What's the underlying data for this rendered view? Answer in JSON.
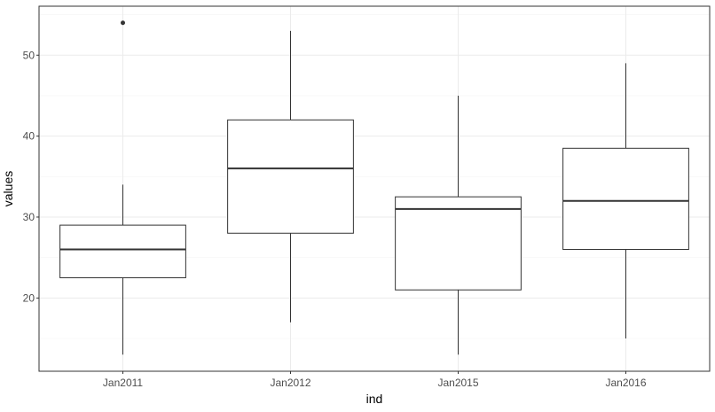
{
  "chart_data": {
    "type": "boxplot",
    "xlabel": "ind",
    "ylabel": "values",
    "categories": [
      "Jan2011",
      "Jan2012",
      "Jan2015",
      "Jan2016"
    ],
    "boxes": [
      {
        "category": "Jan2011",
        "whisker_low": 13,
        "q1": 22.5,
        "median": 26,
        "q3": 29,
        "whisker_high": 34,
        "outliers": [
          54
        ]
      },
      {
        "category": "Jan2012",
        "whisker_low": 17,
        "q1": 28,
        "median": 36,
        "q3": 42,
        "whisker_high": 53,
        "outliers": []
      },
      {
        "category": "Jan2015",
        "whisker_low": 13,
        "q1": 21,
        "median": 31,
        "q3": 32.5,
        "whisker_high": 45,
        "outliers": []
      },
      {
        "category": "Jan2016",
        "whisker_low": 15,
        "q1": 26,
        "median": 32,
        "q3": 38.5,
        "whisker_high": 49,
        "outliers": []
      }
    ],
    "ylim": [
      10.95,
      56.05
    ],
    "yticks": [
      20,
      30,
      40,
      50
    ],
    "yticks_minor": [
      15,
      25,
      35,
      45,
      55
    ],
    "grid": true,
    "legend": "none",
    "colors": {
      "panel_border": "#333333",
      "grid_major": "#ebebeb",
      "grid_minor": "#f5f5f5",
      "box_fill": "#ffffff",
      "box_line": "#333333",
      "tick_text": "#4d4d4d",
      "title_text": "#000000"
    }
  }
}
